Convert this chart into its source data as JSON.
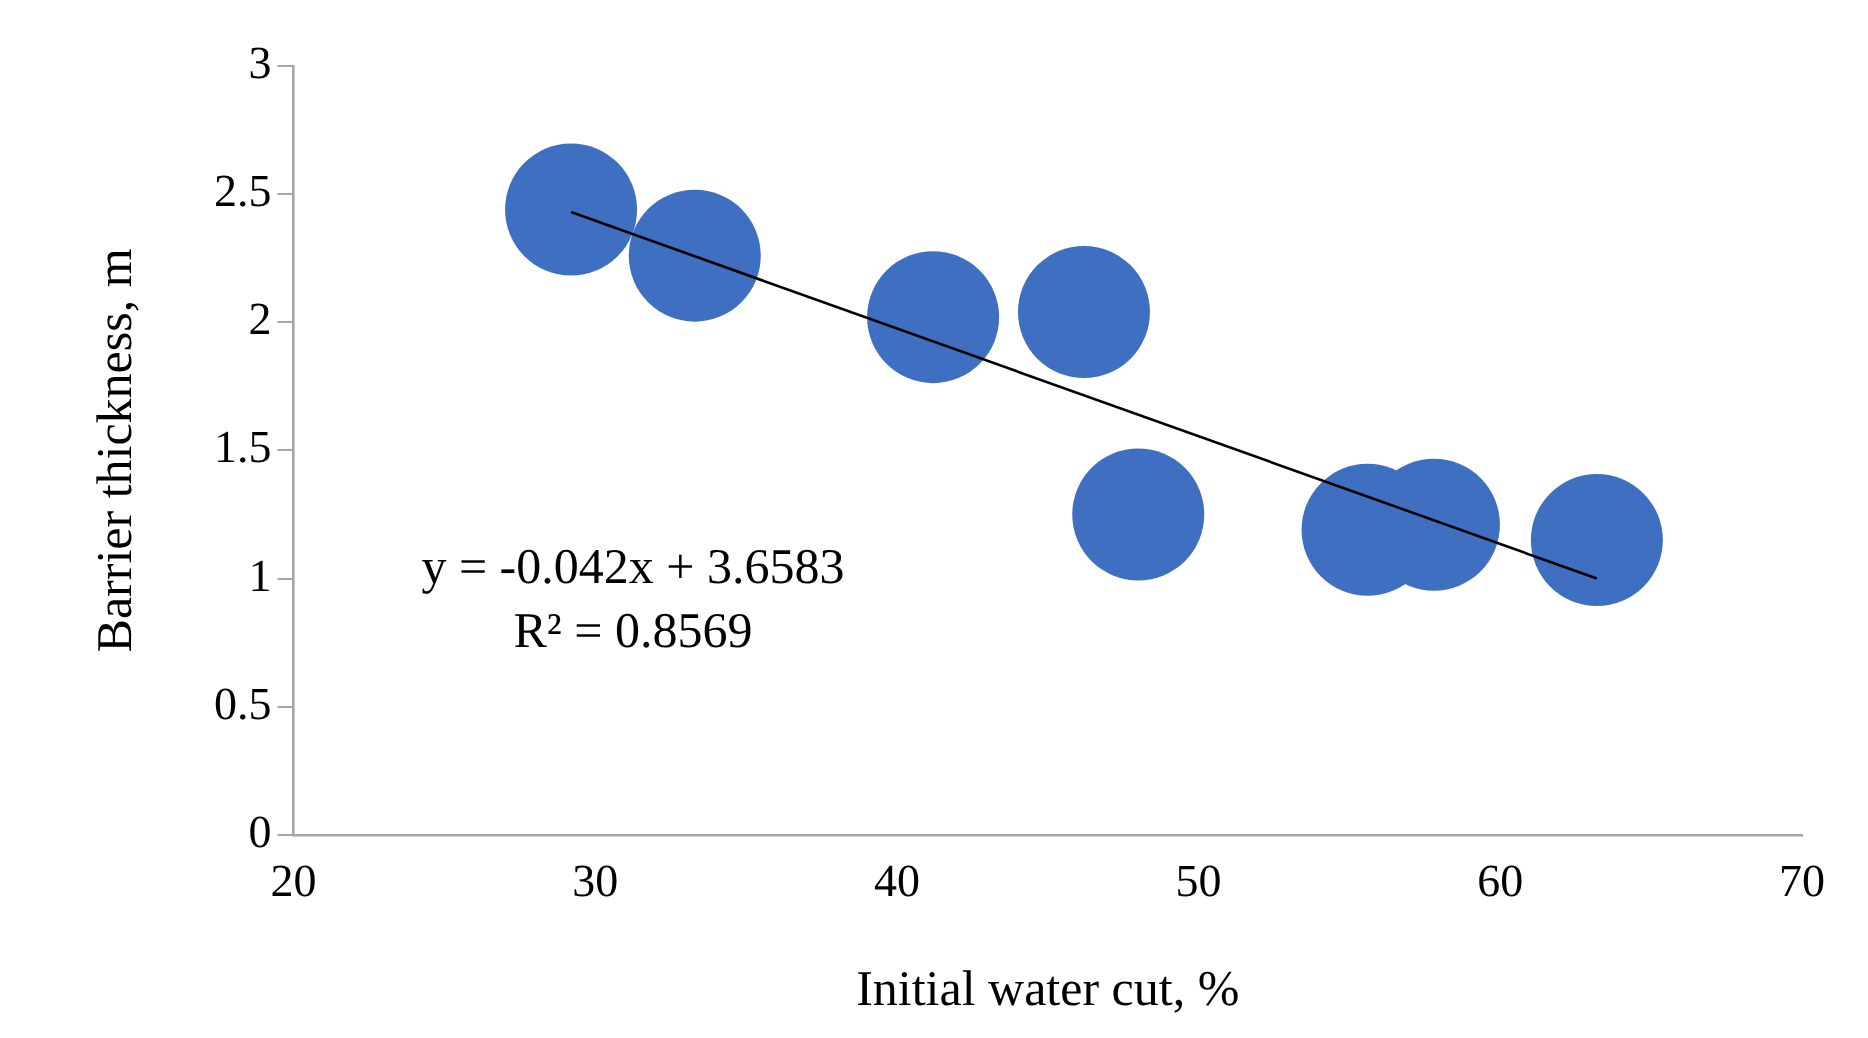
{
  "chart_data": {
    "type": "bubble",
    "xlabel": "Initial water cut, %",
    "ylabel": "Barrier thickness, m",
    "xlim": [
      20,
      70
    ],
    "xticks": [
      20,
      30,
      40,
      50,
      60,
      70
    ],
    "ylim": [
      0,
      3
    ],
    "yticks": [
      0,
      0.5,
      1,
      1.5,
      2,
      2.5,
      3
    ],
    "grid": false,
    "legend": false,
    "annotations": [
      "y = -0.042x + 3.6583",
      "R² = 0.8569"
    ],
    "series": [
      {
        "color": "#3f6fc0",
        "x": [
          29.2,
          33.3,
          41.2,
          46.2,
          48.0,
          55.6,
          57.8,
          63.2
        ],
        "values": [
          2.44,
          2.26,
          2.02,
          2.04,
          1.25,
          1.19,
          1.21,
          1.15
        ],
        "sizes": [
          1,
          1,
          1,
          1,
          1,
          1,
          1,
          1
        ]
      },
      {
        "type": "line",
        "color": "#000000",
        "marker": "none",
        "x": [
          29.2,
          63.2
        ],
        "values": [
          2.43,
          1.0
        ]
      }
    ]
  }
}
